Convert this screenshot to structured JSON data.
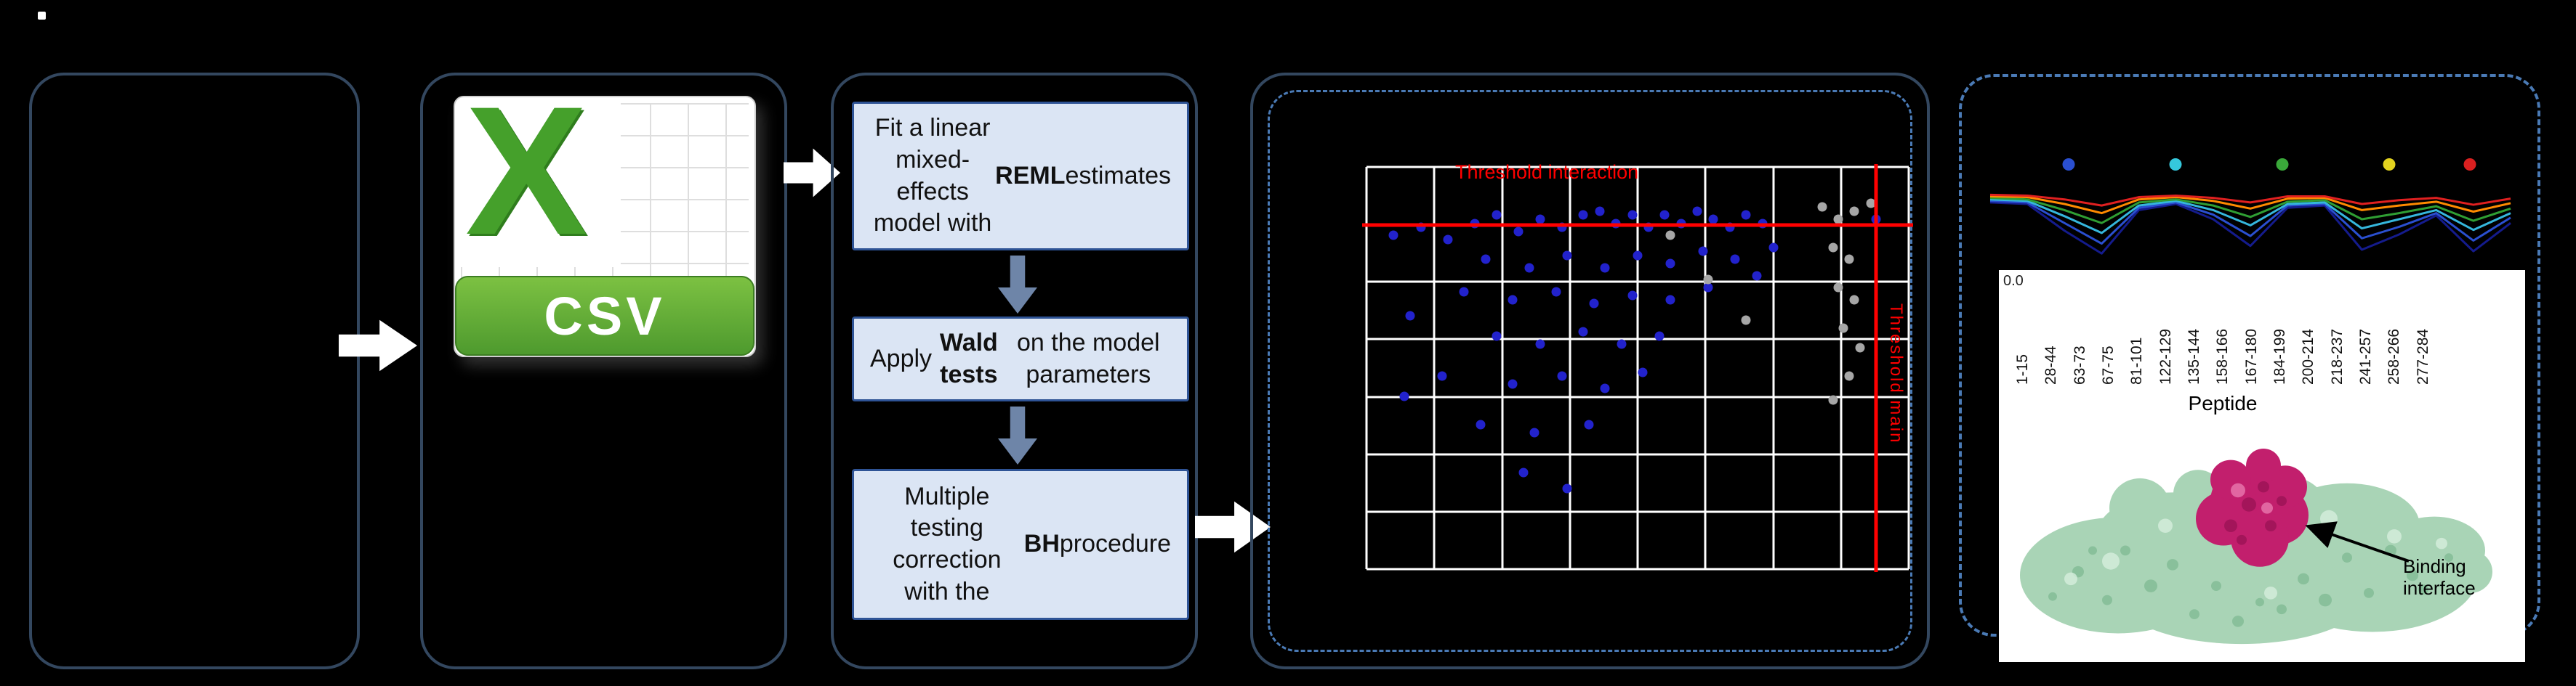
{
  "colors": {
    "background": "#000000",
    "panel_border": "#33475f",
    "dashed_border": "#4a7ab5",
    "process_box_fill": "#dbe5f4",
    "process_box_border": "#2e5395",
    "flow_arrow_white": "#ffffff",
    "flow_arrow_blue": "#6e85a8",
    "threshold_red": "#ff0000",
    "grid_white": "#ffffff",
    "csv_green": "#4e9a2e",
    "protein_body": "#a9d4b6",
    "protein_body_dark": "#6fae85",
    "protein_body_light": "#d6eedd",
    "protein_interface": "#c21f6d",
    "protein_interface_dark": "#8e0f4e",
    "protein_interface_light": "#e878ae"
  },
  "pipeline": {
    "csv_icon": {
      "x_label": "X",
      "label": "CSV"
    },
    "steps": [
      {
        "pre": "Fit a linear mixed-effects model with ",
        "bold": "REML",
        "post": " estimates"
      },
      {
        "pre": "Apply ",
        "bold": "Wald tests",
        "post": " on the model parameters"
      },
      {
        "pre": "Multiple testing correction\nwith the ",
        "bold": "BH",
        "post": " procedure"
      }
    ]
  },
  "right_panel": {
    "protein_caption": "Binding interface"
  },
  "chart_data": [
    {
      "type": "scatter",
      "title": "",
      "grid": {
        "cols": 8,
        "rows": 7,
        "grid_on": true
      },
      "annotations": [
        {
          "text": "Threshold interaction",
          "color": "#ff0000",
          "orientation": "horizontal"
        },
        {
          "text": "Threshold main",
          "color": "#ff0000",
          "orientation": "vertical"
        }
      ],
      "threshold_lines": {
        "horizontal_y_frac": 0.145,
        "vertical_x_frac": 0.94
      },
      "series": [
        {
          "name": "blue_points",
          "color": "#2222cc",
          "points": [
            [
              0.05,
              0.17
            ],
            [
              0.1,
              0.15
            ],
            [
              0.15,
              0.18
            ],
            [
              0.2,
              0.14
            ],
            [
              0.24,
              0.12
            ],
            [
              0.28,
              0.16
            ],
            [
              0.32,
              0.13
            ],
            [
              0.36,
              0.15
            ],
            [
              0.4,
              0.12
            ],
            [
              0.43,
              0.11
            ],
            [
              0.46,
              0.14
            ],
            [
              0.49,
              0.12
            ],
            [
              0.52,
              0.15
            ],
            [
              0.55,
              0.12
            ],
            [
              0.58,
              0.14
            ],
            [
              0.61,
              0.11
            ],
            [
              0.64,
              0.13
            ],
            [
              0.67,
              0.15
            ],
            [
              0.7,
              0.12
            ],
            [
              0.73,
              0.14
            ],
            [
              0.22,
              0.23
            ],
            [
              0.3,
              0.25
            ],
            [
              0.37,
              0.22
            ],
            [
              0.44,
              0.25
            ],
            [
              0.5,
              0.22
            ],
            [
              0.56,
              0.24
            ],
            [
              0.62,
              0.21
            ],
            [
              0.68,
              0.23
            ],
            [
              0.18,
              0.31
            ],
            [
              0.27,
              0.33
            ],
            [
              0.35,
              0.31
            ],
            [
              0.42,
              0.34
            ],
            [
              0.49,
              0.32
            ],
            [
              0.56,
              0.33
            ],
            [
              0.63,
              0.3
            ],
            [
              0.24,
              0.42
            ],
            [
              0.32,
              0.44
            ],
            [
              0.4,
              0.41
            ],
            [
              0.47,
              0.44
            ],
            [
              0.54,
              0.42
            ],
            [
              0.14,
              0.52
            ],
            [
              0.27,
              0.54
            ],
            [
              0.36,
              0.52
            ],
            [
              0.44,
              0.55
            ],
            [
              0.51,
              0.51
            ],
            [
              0.21,
              0.64
            ],
            [
              0.31,
              0.66
            ],
            [
              0.41,
              0.64
            ],
            [
              0.29,
              0.76
            ],
            [
              0.37,
              0.8
            ],
            [
              0.08,
              0.37
            ],
            [
              0.07,
              0.57
            ],
            [
              0.72,
              0.27
            ],
            [
              0.75,
              0.2
            ],
            [
              0.94,
              0.13
            ]
          ]
        },
        {
          "name": "gray_points",
          "color": "#a6a6a6",
          "points": [
            [
              0.84,
              0.1
            ],
            [
              0.87,
              0.13
            ],
            [
              0.9,
              0.11
            ],
            [
              0.93,
              0.09
            ],
            [
              0.86,
              0.2
            ],
            [
              0.89,
              0.23
            ],
            [
              0.87,
              0.3
            ],
            [
              0.9,
              0.33
            ],
            [
              0.88,
              0.4
            ],
            [
              0.91,
              0.45
            ],
            [
              0.89,
              0.52
            ],
            [
              0.86,
              0.58
            ],
            [
              0.56,
              0.17
            ],
            [
              0.63,
              0.28
            ],
            [
              0.7,
              0.38
            ]
          ]
        }
      ]
    },
    {
      "type": "line",
      "title": "",
      "xlabel": "Peptide",
      "ylabel": "",
      "y_tick": "0.0",
      "categories": [
        "1-15",
        "28-44",
        "63-73",
        "67-75",
        "81-101",
        "122-129",
        "135-144",
        "158-166",
        "167-180",
        "184-199",
        "200-214",
        "218-237",
        "241-257",
        "258-266",
        "277-284"
      ],
      "series": [
        {
          "name": "navy",
          "color": "#141b8c",
          "values": [
            0.82,
            0.8,
            0.45,
            0.15,
            0.72,
            0.8,
            0.6,
            0.25,
            0.75,
            0.78,
            0.2,
            0.4,
            0.65,
            0.18,
            0.55
          ]
        },
        {
          "name": "blue",
          "color": "#2a4fd0",
          "values": [
            0.84,
            0.82,
            0.55,
            0.28,
            0.75,
            0.82,
            0.66,
            0.38,
            0.78,
            0.8,
            0.35,
            0.5,
            0.68,
            0.32,
            0.62
          ]
        },
        {
          "name": "cyan",
          "color": "#35b6dc",
          "values": [
            0.86,
            0.84,
            0.64,
            0.42,
            0.78,
            0.84,
            0.72,
            0.52,
            0.8,
            0.82,
            0.48,
            0.6,
            0.72,
            0.46,
            0.68
          ]
        },
        {
          "name": "green",
          "color": "#2f9e33",
          "values": [
            0.88,
            0.86,
            0.72,
            0.55,
            0.82,
            0.86,
            0.78,
            0.63,
            0.83,
            0.85,
            0.6,
            0.68,
            0.77,
            0.58,
            0.74
          ]
        },
        {
          "name": "orange",
          "color": "#ff8a00",
          "values": [
            0.9,
            0.89,
            0.8,
            0.68,
            0.86,
            0.89,
            0.84,
            0.74,
            0.87,
            0.88,
            0.72,
            0.78,
            0.83,
            0.7,
            0.81
          ]
        },
        {
          "name": "red",
          "color": "#e02020",
          "values": [
            0.92,
            0.91,
            0.86,
            0.78,
            0.89,
            0.91,
            0.88,
            0.82,
            0.9,
            0.9,
            0.8,
            0.85,
            0.88,
            0.79,
            0.87
          ]
        }
      ],
      "markers": [
        {
          "color": "#2a4fd0",
          "x_frac": 0.16
        },
        {
          "color": "#35c8dc",
          "x_frac": 0.36
        },
        {
          "color": "#3aa83a",
          "x_frac": 0.56
        },
        {
          "color": "#e3d31f",
          "x_frac": 0.76
        },
        {
          "color": "#da2020",
          "x_frac": 0.91
        }
      ],
      "legend_position": "top",
      "ylim": [
        0.0,
        1.0
      ]
    }
  ]
}
